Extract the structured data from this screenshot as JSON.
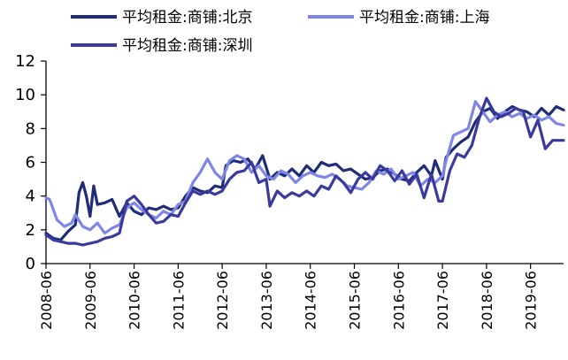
{
  "chart_data": {
    "type": "line",
    "title": "",
    "xlabel": "",
    "ylabel": "",
    "ylim": [
      0,
      12
    ],
    "yticks": [
      0,
      2,
      4,
      6,
      8,
      10,
      12
    ],
    "x_range": [
      "2008-06",
      "2020-03"
    ],
    "x_ticks": [
      "2008-06",
      "2009-06",
      "2010-06",
      "2011-06",
      "2012-06",
      "2013-06",
      "2014-06",
      "2015-06",
      "2016-06",
      "2017-06",
      "2018-06",
      "2019-06"
    ],
    "grid": false,
    "legend_position": "top",
    "series": [
      {
        "name": "平均租金:商铺:北京",
        "color": "#1f2d78",
        "points": [
          [
            "2008-06",
            1.8
          ],
          [
            "2008-08",
            1.5
          ],
          [
            "2008-10",
            1.4
          ],
          [
            "2008-12",
            1.9
          ],
          [
            "2009-02",
            2.3
          ],
          [
            "2009-03",
            4.2
          ],
          [
            "2009-04",
            4.8
          ],
          [
            "2009-05",
            4.0
          ],
          [
            "2009-06",
            2.8
          ],
          [
            "2009-07",
            4.6
          ],
          [
            "2009-08",
            3.5
          ],
          [
            "2009-10",
            3.6
          ],
          [
            "2009-12",
            3.8
          ],
          [
            "2010-02",
            2.8
          ],
          [
            "2010-04",
            3.6
          ],
          [
            "2010-06",
            3.1
          ],
          [
            "2010-08",
            2.9
          ],
          [
            "2010-10",
            3.3
          ],
          [
            "2010-12",
            3.2
          ],
          [
            "2011-02",
            3.4
          ],
          [
            "2011-04",
            3.2
          ],
          [
            "2011-06",
            3.3
          ],
          [
            "2011-08",
            4.0
          ],
          [
            "2011-10",
            4.5
          ],
          [
            "2011-12",
            4.3
          ],
          [
            "2012-02",
            4.2
          ],
          [
            "2012-04",
            4.6
          ],
          [
            "2012-06",
            4.5
          ],
          [
            "2012-07",
            5.8
          ],
          [
            "2012-09",
            6.1
          ],
          [
            "2012-11",
            6.0
          ],
          [
            "2013-01",
            6.2
          ],
          [
            "2013-03",
            5.6
          ],
          [
            "2013-05",
            6.4
          ],
          [
            "2013-07",
            5.0
          ],
          [
            "2013-09",
            5.4
          ],
          [
            "2013-11",
            5.2
          ],
          [
            "2014-01",
            5.6
          ],
          [
            "2014-03",
            5.2
          ],
          [
            "2014-05",
            5.8
          ],
          [
            "2014-07",
            5.4
          ],
          [
            "2014-09",
            6.0
          ],
          [
            "2014-11",
            5.8
          ],
          [
            "2015-01",
            5.9
          ],
          [
            "2015-03",
            5.5
          ],
          [
            "2015-05",
            5.6
          ],
          [
            "2015-07",
            5.3
          ],
          [
            "2015-09",
            5.0
          ],
          [
            "2015-11",
            5.1
          ],
          [
            "2016-01",
            5.5
          ],
          [
            "2016-03",
            5.6
          ],
          [
            "2016-05",
            5.3
          ],
          [
            "2016-07",
            5.0
          ],
          [
            "2016-09",
            4.9
          ],
          [
            "2016-11",
            5.4
          ],
          [
            "2017-01",
            5.8
          ],
          [
            "2017-03",
            5.2
          ],
          [
            "2017-04",
            6.1
          ],
          [
            "2017-06",
            5.0
          ],
          [
            "2017-07",
            6.3
          ],
          [
            "2017-09",
            6.8
          ],
          [
            "2017-11",
            7.2
          ],
          [
            "2018-01",
            7.5
          ],
          [
            "2018-03",
            8.4
          ],
          [
            "2018-05",
            9.0
          ],
          [
            "2018-07",
            9.2
          ],
          [
            "2018-09",
            8.6
          ],
          [
            "2018-11",
            9.0
          ],
          [
            "2019-01",
            9.3
          ],
          [
            "2019-03",
            9.1
          ],
          [
            "2019-05",
            9.0
          ],
          [
            "2019-07",
            8.7
          ],
          [
            "2019-09",
            9.2
          ],
          [
            "2019-11",
            8.8
          ],
          [
            "2020-01",
            9.3
          ],
          [
            "2020-03",
            9.1
          ]
        ]
      },
      {
        "name": "平均租金:商铺:上海",
        "color": "#7f86e6",
        "points": [
          [
            "2008-06",
            3.9
          ],
          [
            "2008-07",
            3.8
          ],
          [
            "2008-09",
            2.6
          ],
          [
            "2008-11",
            2.2
          ],
          [
            "2009-01",
            2.4
          ],
          [
            "2009-02",
            2.9
          ],
          [
            "2009-04",
            2.2
          ],
          [
            "2009-06",
            2.0
          ],
          [
            "2009-08",
            2.4
          ],
          [
            "2009-10",
            1.8
          ],
          [
            "2009-12",
            2.1
          ],
          [
            "2010-02",
            2.3
          ],
          [
            "2010-04",
            3.3
          ],
          [
            "2010-06",
            3.6
          ],
          [
            "2010-08",
            3.2
          ],
          [
            "2010-10",
            2.9
          ],
          [
            "2010-12",
            2.7
          ],
          [
            "2011-02",
            3.1
          ],
          [
            "2011-04",
            2.9
          ],
          [
            "2011-06",
            3.5
          ],
          [
            "2011-08",
            3.7
          ],
          [
            "2011-10",
            4.8
          ],
          [
            "2011-12",
            5.4
          ],
          [
            "2012-02",
            6.2
          ],
          [
            "2012-04",
            5.4
          ],
          [
            "2012-06",
            5.0
          ],
          [
            "2012-08",
            6.1
          ],
          [
            "2012-10",
            6.4
          ],
          [
            "2012-12",
            6.2
          ],
          [
            "2013-02",
            5.4
          ],
          [
            "2013-04",
            5.8
          ],
          [
            "2013-06",
            5.2
          ],
          [
            "2013-08",
            5.0
          ],
          [
            "2013-10",
            5.5
          ],
          [
            "2013-12",
            5.3
          ],
          [
            "2014-02",
            4.8
          ],
          [
            "2014-04",
            5.2
          ],
          [
            "2014-06",
            5.4
          ],
          [
            "2014-08",
            5.2
          ],
          [
            "2014-10",
            5.1
          ],
          [
            "2014-12",
            5.3
          ],
          [
            "2015-02",
            5.0
          ],
          [
            "2015-04",
            4.6
          ],
          [
            "2015-06",
            4.5
          ],
          [
            "2015-08",
            4.4
          ],
          [
            "2015-10",
            4.8
          ],
          [
            "2015-12",
            5.5
          ],
          [
            "2016-02",
            5.3
          ],
          [
            "2016-04",
            5.6
          ],
          [
            "2016-06",
            5.0
          ],
          [
            "2016-08",
            5.2
          ],
          [
            "2016-10",
            5.4
          ],
          [
            "2016-12",
            4.6
          ],
          [
            "2017-02",
            5.0
          ],
          [
            "2017-04",
            4.8
          ],
          [
            "2017-06",
            5.2
          ],
          [
            "2017-07",
            6.1
          ],
          [
            "2017-09",
            7.6
          ],
          [
            "2017-11",
            7.8
          ],
          [
            "2018-01",
            8.0
          ],
          [
            "2018-03",
            9.6
          ],
          [
            "2018-05",
            9.0
          ],
          [
            "2018-07",
            8.4
          ],
          [
            "2018-09",
            8.8
          ],
          [
            "2018-11",
            9.0
          ],
          [
            "2019-01",
            8.7
          ],
          [
            "2019-03",
            8.9
          ],
          [
            "2019-05",
            8.6
          ],
          [
            "2019-07",
            8.8
          ],
          [
            "2019-09",
            8.5
          ],
          [
            "2019-11",
            8.7
          ],
          [
            "2020-01",
            8.3
          ],
          [
            "2020-03",
            8.2
          ]
        ]
      },
      {
        "name": "平均租金:商铺:深圳",
        "color": "#3a3a9e",
        "points": [
          [
            "2008-06",
            1.7
          ],
          [
            "2008-08",
            1.4
          ],
          [
            "2008-10",
            1.3
          ],
          [
            "2008-12",
            1.2
          ],
          [
            "2009-02",
            1.2
          ],
          [
            "2009-04",
            1.1
          ],
          [
            "2009-06",
            1.2
          ],
          [
            "2009-08",
            1.3
          ],
          [
            "2009-10",
            1.5
          ],
          [
            "2009-12",
            1.6
          ],
          [
            "2010-02",
            1.8
          ],
          [
            "2010-04",
            3.7
          ],
          [
            "2010-06",
            4.0
          ],
          [
            "2010-08",
            3.5
          ],
          [
            "2010-10",
            2.9
          ],
          [
            "2010-12",
            2.4
          ],
          [
            "2011-02",
            2.5
          ],
          [
            "2011-04",
            2.9
          ],
          [
            "2011-06",
            2.8
          ],
          [
            "2011-08",
            3.6
          ],
          [
            "2011-10",
            4.3
          ],
          [
            "2011-12",
            4.1
          ],
          [
            "2012-02",
            4.3
          ],
          [
            "2012-04",
            4.1
          ],
          [
            "2012-06",
            4.3
          ],
          [
            "2012-08",
            5.0
          ],
          [
            "2012-10",
            5.4
          ],
          [
            "2012-12",
            5.5
          ],
          [
            "2013-02",
            6.0
          ],
          [
            "2013-04",
            4.8
          ],
          [
            "2013-06",
            5.0
          ],
          [
            "2013-07",
            3.4
          ],
          [
            "2013-09",
            4.3
          ],
          [
            "2013-11",
            3.9
          ],
          [
            "2014-01",
            4.2
          ],
          [
            "2014-03",
            4.0
          ],
          [
            "2014-05",
            4.3
          ],
          [
            "2014-07",
            4.0
          ],
          [
            "2014-09",
            4.6
          ],
          [
            "2014-11",
            4.4
          ],
          [
            "2015-01",
            5.2
          ],
          [
            "2015-03",
            4.8
          ],
          [
            "2015-05",
            4.2
          ],
          [
            "2015-07",
            5.0
          ],
          [
            "2015-09",
            5.4
          ],
          [
            "2015-11",
            5.0
          ],
          [
            "2016-01",
            5.8
          ],
          [
            "2016-03",
            5.5
          ],
          [
            "2016-05",
            4.9
          ],
          [
            "2016-07",
            5.5
          ],
          [
            "2016-09",
            4.7
          ],
          [
            "2016-11",
            5.3
          ],
          [
            "2017-01",
            3.9
          ],
          [
            "2017-03",
            5.3
          ],
          [
            "2017-05",
            3.7
          ],
          [
            "2017-06",
            3.7
          ],
          [
            "2017-08",
            5.5
          ],
          [
            "2017-10",
            6.5
          ],
          [
            "2017-12",
            6.3
          ],
          [
            "2018-02",
            7.0
          ],
          [
            "2018-04",
            8.6
          ],
          [
            "2018-06",
            9.8
          ],
          [
            "2018-08",
            9.0
          ],
          [
            "2018-10",
            8.7
          ],
          [
            "2018-12",
            8.9
          ],
          [
            "2019-02",
            9.2
          ],
          [
            "2019-04",
            9.0
          ],
          [
            "2019-06",
            7.5
          ],
          [
            "2019-08",
            8.5
          ],
          [
            "2019-10",
            6.8
          ],
          [
            "2019-12",
            7.3
          ],
          [
            "2020-02",
            7.3
          ],
          [
            "2020-03",
            7.3
          ]
        ]
      }
    ]
  }
}
